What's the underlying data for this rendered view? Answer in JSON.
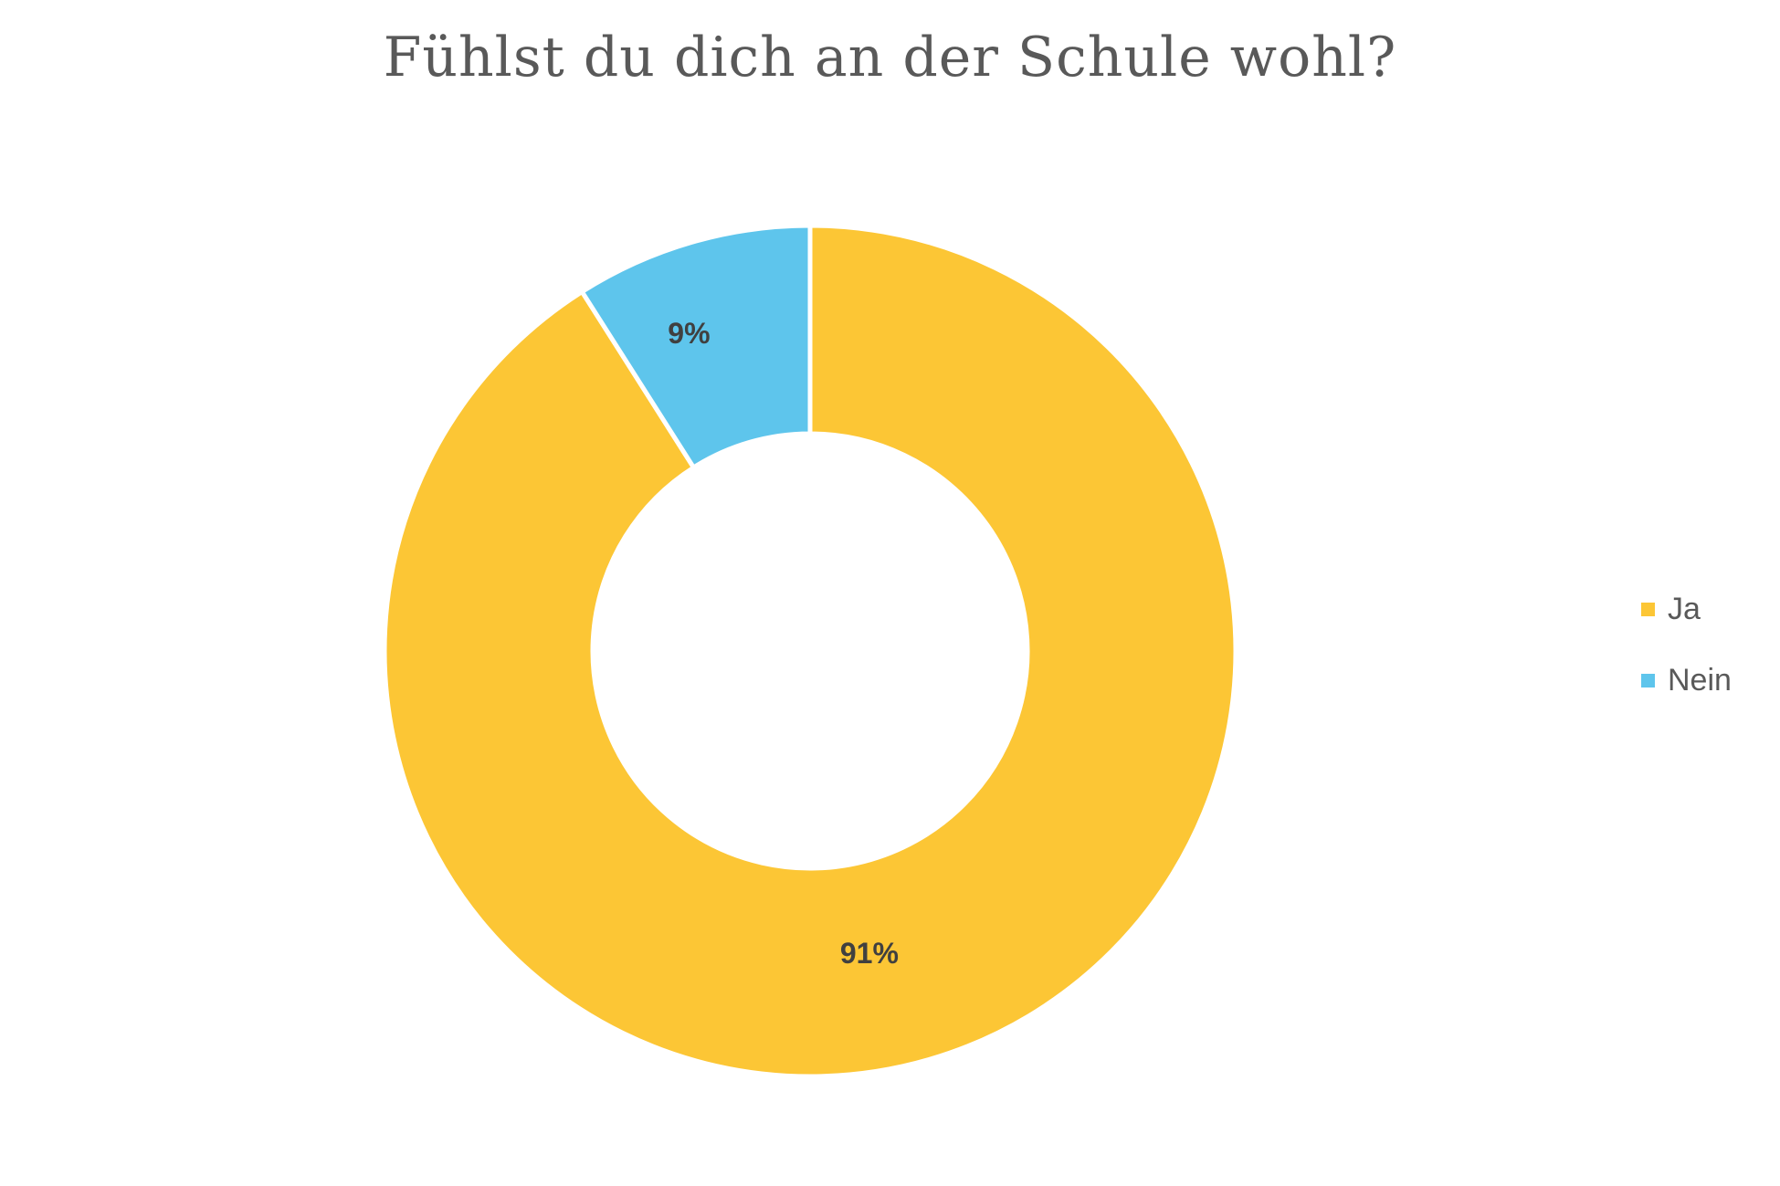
{
  "chart_data": {
    "type": "pie",
    "subtype": "donut",
    "title": "Fühlst du dich an der Schule wohl?",
    "categories": [
      "Ja",
      "Nein"
    ],
    "values": [
      91,
      9
    ],
    "data_labels": [
      "91%",
      "9%"
    ],
    "colors": [
      "#FCC635",
      "#5EC5EC"
    ],
    "legend": {
      "placement": "right",
      "entries": [
        "Ja",
        "Nein"
      ]
    }
  }
}
